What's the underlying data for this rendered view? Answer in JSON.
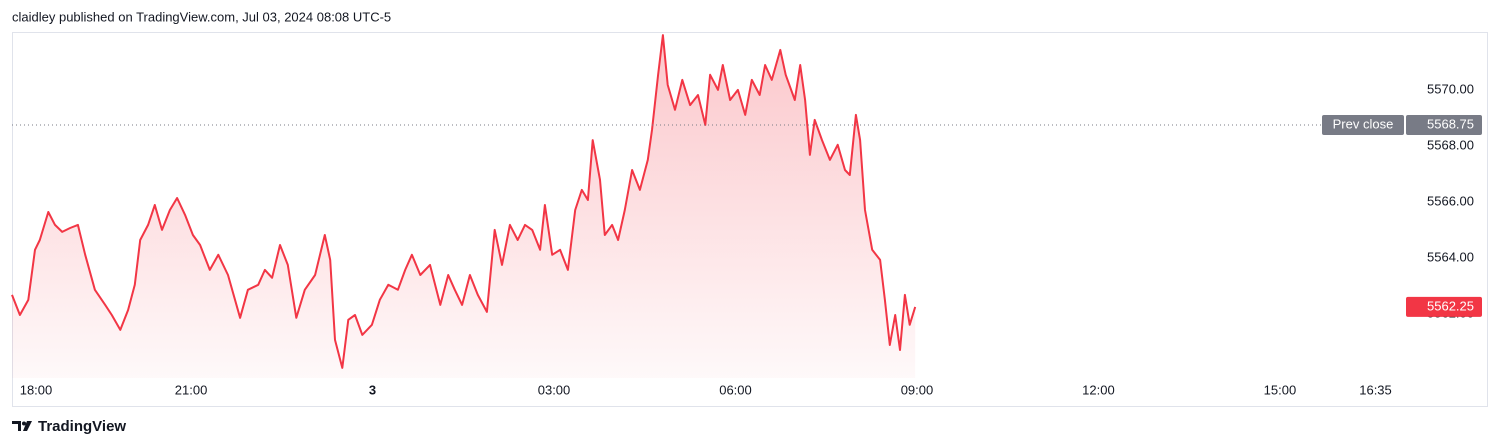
{
  "header": "claidley published on TradingView.com, Jul 03, 2024 08:08 UTC-5",
  "footer": "TradingView",
  "chart_data": {
    "type": "area",
    "color": "#f23645",
    "xlim": [
      18.04,
      41.15
    ],
    "ylim": [
      5559.71,
      5572.07
    ],
    "xticks": [
      {
        "value": 18,
        "label": "18:00"
      },
      {
        "value": 21,
        "label": "21:00"
      },
      {
        "value": 24,
        "label": "3"
      },
      {
        "value": 27,
        "label": "03:00"
      },
      {
        "value": 30,
        "label": "06:00"
      },
      {
        "value": 33,
        "label": "09:00"
      },
      {
        "value": 36,
        "label": "12:00"
      },
      {
        "value": 39,
        "label": "15:00"
      },
      {
        "value": 40.58,
        "label": "16:35"
      }
    ],
    "yticks": [
      {
        "value": 5562,
        "label": "5562.00"
      },
      {
        "value": 5564,
        "label": "5564.00"
      },
      {
        "value": 5566,
        "label": "5566.00"
      },
      {
        "value": 5568,
        "label": "5568.00"
      },
      {
        "value": 5570,
        "label": "5570.00"
      }
    ],
    "prev_close": 5568.75,
    "prev_close_label": "Prev close",
    "x": [
      18.04,
      18.17,
      18.31,
      18.42,
      18.5,
      18.64,
      18.75,
      18.87,
      19.0,
      19.13,
      19.25,
      19.41,
      19.58,
      19.69,
      19.83,
      19.96,
      20.07,
      20.16,
      20.29,
      20.4,
      20.52,
      20.65,
      20.77,
      20.9,
      21.03,
      21.15,
      21.31,
      21.45,
      21.61,
      21.81,
      21.94,
      22.11,
      22.22,
      22.34,
      22.47,
      22.6,
      22.74,
      22.88,
      23.05,
      23.21,
      23.3,
      23.38,
      23.5,
      23.6,
      23.71,
      23.83,
      23.99,
      24.12,
      24.26,
      24.42,
      24.54,
      24.65,
      24.79,
      24.95,
      25.12,
      25.25,
      25.36,
      25.48,
      25.61,
      25.74,
      25.89,
      26.02,
      26.14,
      26.27,
      26.4,
      26.52,
      26.64,
      26.77,
      26.85,
      26.97,
      27.1,
      27.23,
      27.35,
      27.46,
      27.56,
      27.64,
      27.76,
      27.84,
      27.96,
      28.06,
      28.17,
      28.29,
      28.42,
      28.55,
      28.62,
      28.72,
      28.8,
      28.88,
      29.0,
      29.12,
      29.25,
      29.38,
      29.5,
      29.58,
      29.71,
      29.79,
      29.91,
      30.04,
      30.16,
      30.27,
      30.4,
      30.49,
      30.6,
      30.74,
      30.83,
      30.98,
      31.07,
      31.15,
      31.23,
      31.31,
      31.43,
      31.56,
      31.69,
      31.81,
      31.89,
      31.99,
      32.06,
      32.14,
      32.26,
      32.39,
      32.47,
      32.55,
      32.64,
      32.72,
      32.8,
      32.88,
      32.97
    ],
    "values": [
      5562.68,
      5561.96,
      5562.5,
      5564.29,
      5564.64,
      5565.64,
      5565.18,
      5564.93,
      5565.07,
      5565.18,
      5564.11,
      5562.86,
      5562.32,
      5561.96,
      5561.43,
      5562.14,
      5563.04,
      5564.64,
      5565.18,
      5565.89,
      5565.0,
      5565.71,
      5566.14,
      5565.54,
      5564.82,
      5564.46,
      5563.57,
      5564.11,
      5563.39,
      5561.86,
      5562.86,
      5563.04,
      5563.57,
      5563.29,
      5564.46,
      5563.75,
      5561.86,
      5562.86,
      5563.39,
      5564.82,
      5563.93,
      5561.07,
      5560.07,
      5561.79,
      5561.96,
      5561.25,
      5561.61,
      5562.5,
      5563.04,
      5562.86,
      5563.57,
      5564.11,
      5563.39,
      5563.75,
      5562.32,
      5563.39,
      5562.86,
      5562.32,
      5563.39,
      5562.68,
      5562.07,
      5565.0,
      5563.75,
      5565.18,
      5564.64,
      5565.18,
      5565.0,
      5564.29,
      5565.89,
      5564.11,
      5564.29,
      5563.57,
      5565.71,
      5566.43,
      5566.07,
      5568.21,
      5566.79,
      5564.82,
      5565.18,
      5564.64,
      5565.71,
      5567.14,
      5566.43,
      5567.5,
      5568.57,
      5570.54,
      5571.96,
      5570.18,
      5569.29,
      5570.36,
      5569.46,
      5569.82,
      5568.75,
      5570.54,
      5570.0,
      5570.89,
      5569.64,
      5570.0,
      5569.11,
      5570.36,
      5569.82,
      5570.89,
      5570.36,
      5571.43,
      5570.54,
      5569.64,
      5570.89,
      5569.64,
      5567.68,
      5568.93,
      5568.21,
      5567.5,
      5568.04,
      5567.14,
      5566.96,
      5569.11,
      5568.21,
      5565.71,
      5564.29,
      5563.93,
      5562.5,
      5560.89,
      5561.96,
      5560.71,
      5562.68,
      5561.61,
      5562.25
    ]
  }
}
